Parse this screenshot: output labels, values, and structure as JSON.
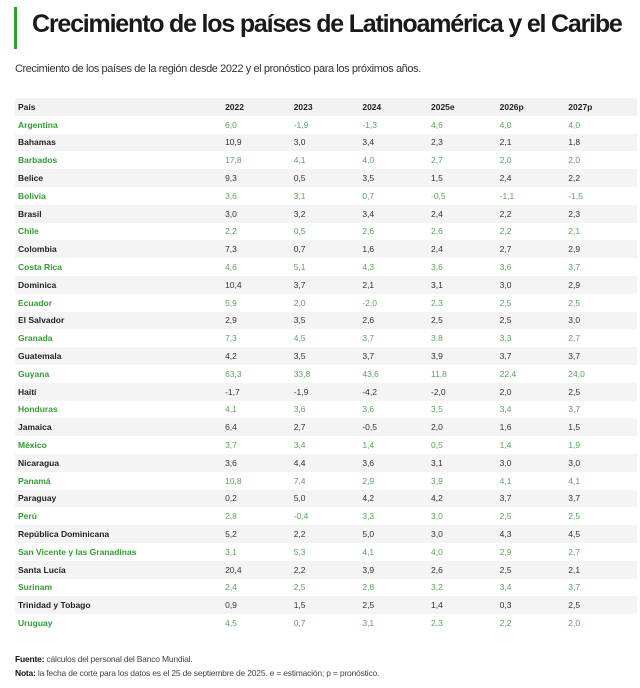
{
  "title": "Crecimiento de los países de Latinoamérica y el Caribe",
  "subtitle": "Crecimiento de los países de la región desde 2022 y el pronóstico para los próximos años.",
  "colors": {
    "accent": "#2e9e2e"
  },
  "table": {
    "headers": [
      "País",
      "2022",
      "2023",
      "2024",
      "2025e",
      "2026p",
      "2027p"
    ],
    "rows": [
      [
        "Argentina",
        "6,0",
        "-1,9",
        "-1,3",
        "4,6",
        "4,0",
        "4,0"
      ],
      [
        "Bahamas",
        "10,9",
        "3,0",
        "3,4",
        "2,3",
        "2,1",
        "1,8"
      ],
      [
        "Barbados",
        "17,8",
        "4,1",
        "4,0",
        "2,7",
        "2,0",
        "2,0"
      ],
      [
        "Belice",
        "9,3",
        "0,5",
        "3,5",
        "1,5",
        "2,4",
        "2,2"
      ],
      [
        "Bolivia",
        "3,6",
        "3,1",
        "0,7",
        "-0,5",
        "-1,1",
        "-1,5"
      ],
      [
        "Brasil",
        "3,0",
        "3,2",
        "3,4",
        "2,4",
        "2,2",
        "2,3"
      ],
      [
        "Chile",
        "2,2",
        "0,5",
        "2,6",
        "2,6",
        "2,2",
        "2,1"
      ],
      [
        "Colombia",
        "7,3",
        "0,7",
        "1,6",
        "2,4",
        "2,7",
        "2,9"
      ],
      [
        "Costa Rica",
        "4,6",
        "5,1",
        "4,3",
        "3,6",
        "3,6",
        "3,7"
      ],
      [
        "Dominica",
        "10,4",
        "3,7",
        "2,1",
        "3,1",
        "3,0",
        "2,9"
      ],
      [
        "Ecuador",
        "5,9",
        "2,0",
        "-2,0",
        "2,3",
        "2,5",
        "2,5"
      ],
      [
        "El Salvador",
        "2,9",
        "3,5",
        "2,6",
        "2,5",
        "2,5",
        "3,0"
      ],
      [
        "Granada",
        "7,3",
        "4,5",
        "3,7",
        "3,8",
        "3,3",
        "2,7"
      ],
      [
        "Guatemala",
        "4,2",
        "3,5",
        "3,7",
        "3,9",
        "3,7",
        "3,7"
      ],
      [
        "Guyana",
        "63,3",
        "33,8",
        "43,6",
        "11,8",
        "22,4",
        "24,0"
      ],
      [
        "Haití",
        "-1,7",
        "-1,9",
        "-4,2",
        "-2,0",
        "2,0",
        "2,5"
      ],
      [
        "Honduras",
        "4,1",
        "3,6",
        "3,6",
        "3,5",
        "3,4",
        "3,7"
      ],
      [
        "Jamaica",
        "6,4",
        "2,7",
        "-0,5",
        "2,0",
        "1,6",
        "1,5"
      ],
      [
        "México",
        "3,7",
        "3,4",
        "1,4",
        "0,5",
        "1,4",
        "1,9"
      ],
      [
        "Nicaragua",
        "3,6",
        "4,4",
        "3,6",
        "3,1",
        "3,0",
        "3,0"
      ],
      [
        "Panamá",
        "10,8",
        "7,4",
        "2,9",
        "3,9",
        "4,1",
        "4,1"
      ],
      [
        "Paraguay",
        "0,2",
        "5,0",
        "4,2",
        "4,2",
        "3,7",
        "3,7"
      ],
      [
        "Perú",
        "2,8",
        "-0,4",
        "3,3",
        "3,0",
        "2,5",
        "2,5"
      ],
      [
        "República Dominicana",
        "5,2",
        "2,2",
        "5,0",
        "3,0",
        "4,3",
        "4,5"
      ],
      [
        "San Vicente y las Granadinas",
        "3,1",
        "5,3",
        "4,1",
        "4,0",
        "2,9",
        "2,7"
      ],
      [
        "Santa Lucía",
        "20,4",
        "2,2",
        "3,9",
        "2,6",
        "2,5",
        "2,1"
      ],
      [
        "Surinam",
        "2,4",
        "2,5",
        "2,8",
        "3,2",
        "3,4",
        "3,7"
      ],
      [
        "Trinidad y Tobago",
        "0,9",
        "1,5",
        "2,5",
        "1,4",
        "0,3",
        "2,5"
      ],
      [
        "Uruguay",
        "4,5",
        "0,7",
        "3,1",
        "2,3",
        "2,2",
        "2,0"
      ]
    ]
  },
  "footer": {
    "source_label": "Fuente:",
    "source_text": " cálculos del personal del Banco Mundial.",
    "note_label": "Nota:",
    "note_text": " la fecha de corte para los datos es el 25 de septiembre de 2025. e = estimación; p = pronóstico."
  }
}
